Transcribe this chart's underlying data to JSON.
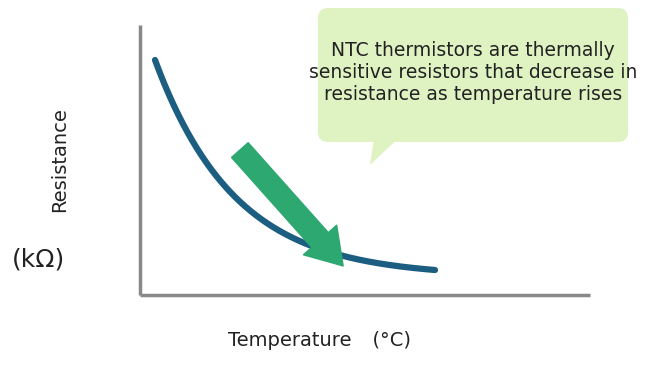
{
  "curve_color": "#1b5e82",
  "curve_linewidth": 4.5,
  "axis_color": "#888888",
  "arrow_color": "#2da870",
  "bubble_bg": "#dff2c2",
  "bubble_text_line1": "NTC thermistors are thermally",
  "bubble_text_line2": "sensitive resistors that decrease in",
  "bubble_text_line3": "resistance as temperature rises",
  "ylabel_top": "Resistance",
  "ylabel_bottom": "(kΩ)",
  "xlabel_part1": "Temperature",
  "xlabel_part2": "  (°C)",
  "text_color": "#222222",
  "bg_color": "#ffffff",
  "font_size_label": 14,
  "font_size_bubble": 13.5,
  "font_size_kOhm": 18
}
